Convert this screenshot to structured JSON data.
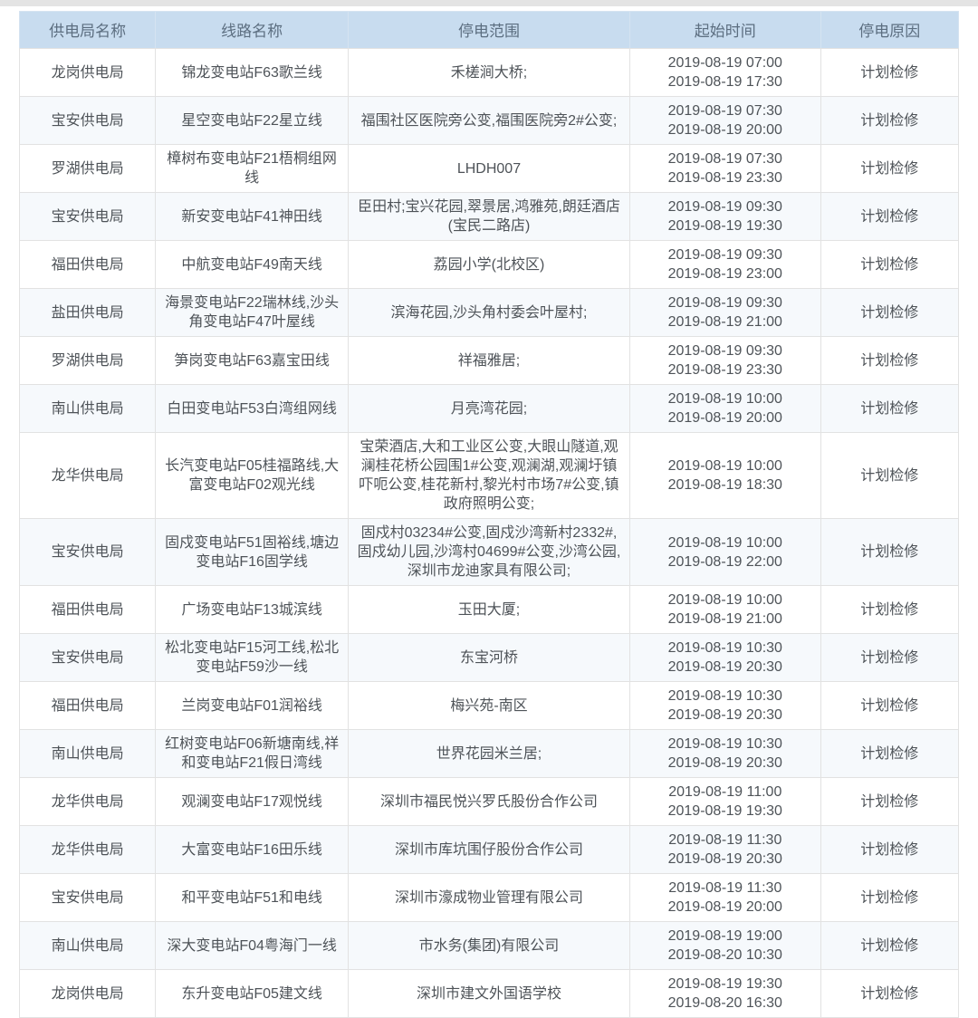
{
  "table": {
    "headers": {
      "bureau": "供电局名称",
      "line": "线路名称",
      "range": "停电范围",
      "time": "起始时间",
      "reason": "停电原因"
    },
    "rows": [
      {
        "bureau": "龙岗供电局",
        "line": "锦龙变电站F63歌兰线",
        "range": "禾槎涧大桥;",
        "start": "2019-08-19 07:00",
        "end": "2019-08-19 17:30",
        "reason": "计划检修"
      },
      {
        "bureau": "宝安供电局",
        "line": "星空变电站F22星立线",
        "range": "福围社区医院旁公变,福围医院旁2#公变;",
        "start": "2019-08-19 07:30",
        "end": "2019-08-19 20:00",
        "reason": "计划检修"
      },
      {
        "bureau": "罗湖供电局",
        "line": "樟树布变电站F21梧桐组网线",
        "range": "LHDH007",
        "start": "2019-08-19 07:30",
        "end": "2019-08-19 23:30",
        "reason": "计划检修"
      },
      {
        "bureau": "宝安供电局",
        "line": "新安变电站F41神田线",
        "range": "臣田村;宝兴花园,翠景居,鸿雅苑,朗廷酒店(宝民二路店)",
        "start": "2019-08-19 09:30",
        "end": "2019-08-19 19:30",
        "reason": "计划检修"
      },
      {
        "bureau": "福田供电局",
        "line": "中航变电站F49南天线",
        "range": "荔园小学(北校区)",
        "start": "2019-08-19 09:30",
        "end": "2019-08-19 23:00",
        "reason": "计划检修"
      },
      {
        "bureau": "盐田供电局",
        "line": "海景变电站F22瑞林线,沙头角变电站F47叶屋线",
        "range": "滨海花园,沙头角村委会叶屋村;",
        "start": "2019-08-19 09:30",
        "end": "2019-08-19 21:00",
        "reason": "计划检修"
      },
      {
        "bureau": "罗湖供电局",
        "line": "笋岗变电站F63嘉宝田线",
        "range": "祥福雅居;",
        "start": "2019-08-19 09:30",
        "end": "2019-08-19 23:30",
        "reason": "计划检修"
      },
      {
        "bureau": "南山供电局",
        "line": "白田变电站F53白湾组网线",
        "range": "月亮湾花园;",
        "start": "2019-08-19 10:00",
        "end": "2019-08-19 20:00",
        "reason": "计划检修"
      },
      {
        "bureau": "龙华供电局",
        "line": "长汽变电站F05桂福路线,大富变电站F02观光线",
        "range": "宝荣酒店,大和工业区公变,大眼山隧道,观澜桂花桥公园围1#公变,观澜湖,观澜圩镇吓呃公变,桂花新村,黎光村市场7#公变,镇政府照明公变;",
        "start": "2019-08-19 10:00",
        "end": "2019-08-19 18:30",
        "reason": "计划检修"
      },
      {
        "bureau": "宝安供电局",
        "line": "固戍变电站F51固裕线,塘边变电站F16固学线",
        "range": "固戍村03234#公变,固戍沙湾新村2332#,固戍幼儿园,沙湾村04699#公变,沙湾公园,深圳市龙迪家具有限公司;",
        "start": "2019-08-19 10:00",
        "end": "2019-08-19 22:00",
        "reason": "计划检修"
      },
      {
        "bureau": "福田供电局",
        "line": "广场变电站F13城滨线",
        "range": "玉田大厦;",
        "start": "2019-08-19 10:00",
        "end": "2019-08-19 21:00",
        "reason": "计划检修"
      },
      {
        "bureau": "宝安供电局",
        "line": "松北变电站F15河工线,松北变电站F59沙一线",
        "range": "东宝河桥",
        "start": "2019-08-19 10:30",
        "end": "2019-08-19 20:30",
        "reason": "计划检修"
      },
      {
        "bureau": "福田供电局",
        "line": "兰岗变电站F01润裕线",
        "range": "梅兴苑-南区",
        "start": "2019-08-19 10:30",
        "end": "2019-08-19 20:30",
        "reason": "计划检修"
      },
      {
        "bureau": "南山供电局",
        "line": "红树变电站F06新塘南线,祥和变电站F21假日湾线",
        "range": "世界花园米兰居;",
        "start": "2019-08-19 10:30",
        "end": "2019-08-19 20:30",
        "reason": "计划检修"
      },
      {
        "bureau": "龙华供电局",
        "line": "观澜变电站F17观悦线",
        "range": "深圳市福民悦兴罗氏股份合作公司",
        "start": "2019-08-19 11:00",
        "end": "2019-08-19 19:30",
        "reason": "计划检修"
      },
      {
        "bureau": "龙华供电局",
        "line": "大富变电站F16田乐线",
        "range": "深圳市库坑围仔股份合作公司",
        "start": "2019-08-19 11:30",
        "end": "2019-08-19 20:30",
        "reason": "计划检修"
      },
      {
        "bureau": "宝安供电局",
        "line": "和平变电站F51和电线",
        "range": "深圳市濠成物业管理有限公司",
        "start": "2019-08-19 11:30",
        "end": "2019-08-19 20:00",
        "reason": "计划检修"
      },
      {
        "bureau": "南山供电局",
        "line": "深大变电站F04粤海门一线",
        "range": "市水务(集团)有限公司",
        "start": "2019-08-19 19:00",
        "end": "2019-08-20 10:30",
        "reason": "计划检修"
      },
      {
        "bureau": "龙岗供电局",
        "line": "东升变电站F05建文线",
        "range": "深圳市建文外国语学校",
        "start": "2019-08-19 19:30",
        "end": "2019-08-20 16:30",
        "reason": "计划检修"
      }
    ],
    "colors": {
      "header_bg": "#c8dcef",
      "header_text": "#5c6e80",
      "body_text": "#4e5358",
      "border": "#e2e2e2",
      "stripe_bg": "#f6f9fc"
    }
  }
}
